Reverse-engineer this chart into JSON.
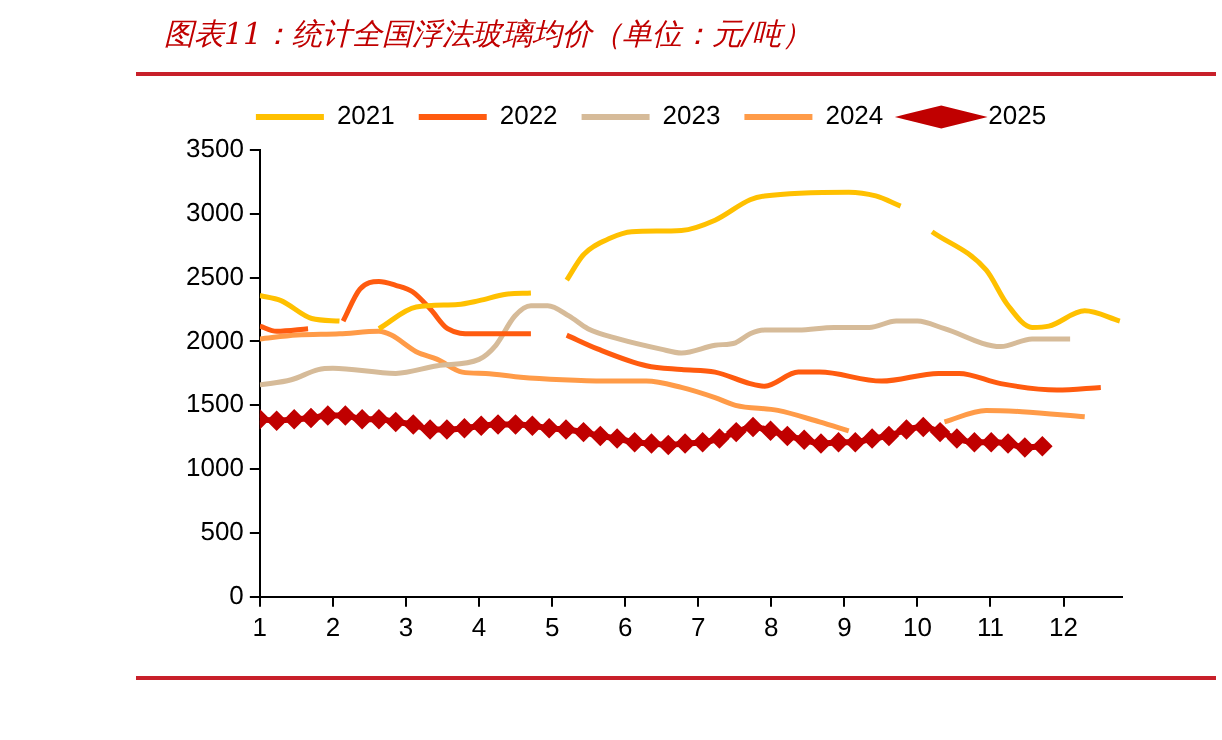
{
  "chart_data": {
    "type": "line",
    "title": "图表11：统计全国浮法玻璃均价（单位：元/吨）",
    "xlim": [
      1,
      12.8
    ],
    "xticks": [
      1,
      2,
      3,
      4,
      5,
      6,
      7,
      8,
      9,
      10,
      11,
      12
    ],
    "ylim": [
      0,
      3500
    ],
    "yticks": [
      0,
      500,
      1000,
      1500,
      2000,
      2500,
      3000,
      3500
    ],
    "grid": false,
    "legend": "top",
    "series": [
      {
        "name": "2021",
        "color": "#ffc000",
        "marker": "none",
        "x": [
          1,
          1.29,
          1.71,
          2.09,
          2.3,
          2.63,
          3.14,
          3.71,
          4,
          4.37,
          4.71,
          4.95,
          5.2,
          5.43,
          5.8,
          6.09,
          6.77,
          7.23,
          7.71,
          7.91,
          9.06,
          9.43,
          9.77,
          10,
          10.2,
          10.94,
          11.23,
          11.57,
          11.8,
          12.29,
          12.77
        ],
        "values": [
          2360,
          2320,
          2180,
          2160,
          null,
          2100,
          2270,
          2290,
          2320,
          2370,
          2380,
          null,
          2480,
          2680,
          2810,
          2860,
          2870,
          2950,
          3110,
          3140,
          3170,
          3140,
          3060,
          null,
          2860,
          2560,
          2290,
          2110,
          2120,
          2240,
          2160
        ]
      },
      {
        "name": "2022",
        "color": "#ff5b0f",
        "marker": "none",
        "x": [
          1,
          1.23,
          1.66,
          1.9,
          2.14,
          2.37,
          2.63,
          2.86,
          3.09,
          3.34,
          3.57,
          3.91,
          4.37,
          4.71,
          4.95,
          5.2,
          5.63,
          6.29,
          6.77,
          7.23,
          7.71,
          7.91,
          8.37,
          8.66,
          9.51,
          10.29,
          10.57,
          11.14,
          11.91,
          12.51
        ],
        "values": [
          2120,
          2080,
          2100,
          null,
          2160,
          2410,
          2470,
          2440,
          2390,
          2250,
          2100,
          2060,
          2060,
          2060,
          null,
          2050,
          1940,
          1810,
          1780,
          1760,
          1670,
          1650,
          1760,
          1760,
          1690,
          1750,
          1750,
          1670,
          1620,
          1640
        ]
      },
      {
        "name": "2023",
        "color": "#d6bb99",
        "marker": "none",
        "x": [
          1,
          1.43,
          1.8,
          2,
          2.86,
          3.43,
          4,
          4.23,
          4.49,
          4.71,
          4.94,
          5.23,
          5.49,
          5.91,
          6.49,
          6.77,
          7.23,
          7.51,
          7.71,
          7.91,
          8.37,
          8.86,
          9.34,
          9.71,
          10,
          10.37,
          11.14,
          11.57,
          12.09
        ],
        "values": [
          1660,
          1700,
          1780,
          1790,
          1750,
          1810,
          1860,
          1970,
          2200,
          2280,
          2280,
          2200,
          2100,
          2020,
          1940,
          1910,
          1970,
          1990,
          2060,
          2090,
          2090,
          2110,
          2110,
          2160,
          2160,
          2100,
          1960,
          2020,
          2020
        ]
      },
      {
        "name": "2024",
        "color": "#ff9b48",
        "marker": "none",
        "x": [
          1,
          1.51,
          2.09,
          2.63,
          2.8,
          3.14,
          3.43,
          3.77,
          4.09,
          4.57,
          5.14,
          5.71,
          6.29,
          6.77,
          7.23,
          7.51,
          8.09,
          8.66,
          9.06,
          9.6,
          10.37,
          10.94,
          11.43,
          12.29
        ],
        "values": [
          2020,
          2050,
          2060,
          2080,
          2050,
          1920,
          1860,
          1760,
          1750,
          1720,
          1700,
          1690,
          1690,
          1640,
          1560,
          1500,
          1460,
          1370,
          1300,
          null,
          1370,
          1460,
          1450,
          1410
        ]
      },
      {
        "name": "2025",
        "color": "#c00000",
        "marker": "diamond",
        "x": [
          1,
          1.23,
          1.47,
          1.7,
          1.93,
          2.17,
          2.4,
          2.63,
          2.86,
          3.1,
          3.33,
          3.56,
          3.8,
          4.03,
          4.26,
          4.5,
          4.73,
          4.96,
          5.19,
          5.43,
          5.66,
          5.89,
          6.13,
          6.36,
          6.59,
          6.82,
          7.06,
          7.29,
          7.52,
          7.75,
          7.99,
          8.22,
          8.45,
          8.68,
          8.92,
          9.15,
          9.38,
          9.61,
          9.85,
          10.08,
          10.31,
          10.54,
          10.78,
          11.01,
          11.24,
          11.47,
          11.71
        ],
        "values": [
          1390,
          1380,
          1390,
          1400,
          1420,
          1420,
          1390,
          1390,
          1370,
          1350,
          1310,
          1310,
          1320,
          1340,
          1350,
          1350,
          1340,
          1320,
          1310,
          1290,
          1260,
          1240,
          1210,
          1200,
          1190,
          1200,
          1210,
          1240,
          1290,
          1330,
          1300,
          1260,
          1230,
          1200,
          1210,
          1210,
          1240,
          1260,
          1310,
          1330,
          1290,
          1240,
          1210,
          1210,
          1200,
          1170,
          1180
        ]
      }
    ]
  }
}
